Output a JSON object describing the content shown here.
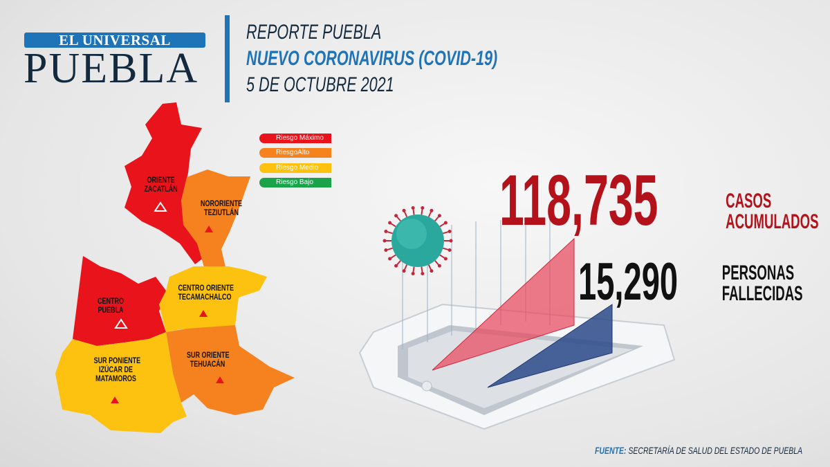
{
  "logo": {
    "top": "EL UNIVERSAL",
    "main": "PUEBLA"
  },
  "header": {
    "line1": "REPORTE PUEBLA",
    "line2": "NUEVO CORONAVIRUS (COVID-19)",
    "line3": "5 DE OCTUBRE 2021"
  },
  "legend": [
    {
      "label": "Riesgo Máximo",
      "color": "#e8131b"
    },
    {
      "label": "RiesgoAlto",
      "color": "#f5821f"
    },
    {
      "label": "Riesgo Medio",
      "color": "#fcc20f"
    },
    {
      "label": "Riesgo Bajo",
      "color": "#1aa34a"
    }
  ],
  "regions": [
    {
      "line1": "ORIENTE",
      "line2": "ZACATLÁN",
      "risk": "Riesgo Máximo",
      "color": "#e8131b"
    },
    {
      "line1": "NORORIENTE",
      "line2": "TEZIUTLÁN",
      "risk": "RiesgoAlto",
      "color": "#f5821f"
    },
    {
      "line1": "CENTRO",
      "line2": "PUEBLA",
      "risk": "Riesgo Máximo",
      "color": "#e8131b"
    },
    {
      "line1": "CENTRO ORIENTE",
      "line2": "TECAMACHALCO",
      "risk": "Riesgo Medio",
      "color": "#fcc20f"
    },
    {
      "line1": "SUR ORIENTE",
      "line2": "TEHUACÁN",
      "risk": "RiesgoAlto",
      "color": "#f5821f"
    },
    {
      "line1": "SUR PONIENTE",
      "line2": "IZÚCAR DE",
      "line3": "MATAMOROS",
      "risk": "Riesgo Medio",
      "color": "#fcc20f"
    }
  ],
  "stats": {
    "cases_value": "118,735",
    "cases_label1": "CASOS",
    "cases_label2": "ACUMULADOS",
    "deaths_value": "15,290",
    "deaths_label1": "PERSONAS",
    "deaths_label2": "FALLECIDAS"
  },
  "source": {
    "label": "FUENTE:",
    "text": "SECRETARÍA DE SALUD DEL ESTADO DE PUEBLA"
  },
  "colors": {
    "brand_blue": "#1f73b7",
    "navy": "#13293d",
    "cases_red": "#b3121a"
  }
}
